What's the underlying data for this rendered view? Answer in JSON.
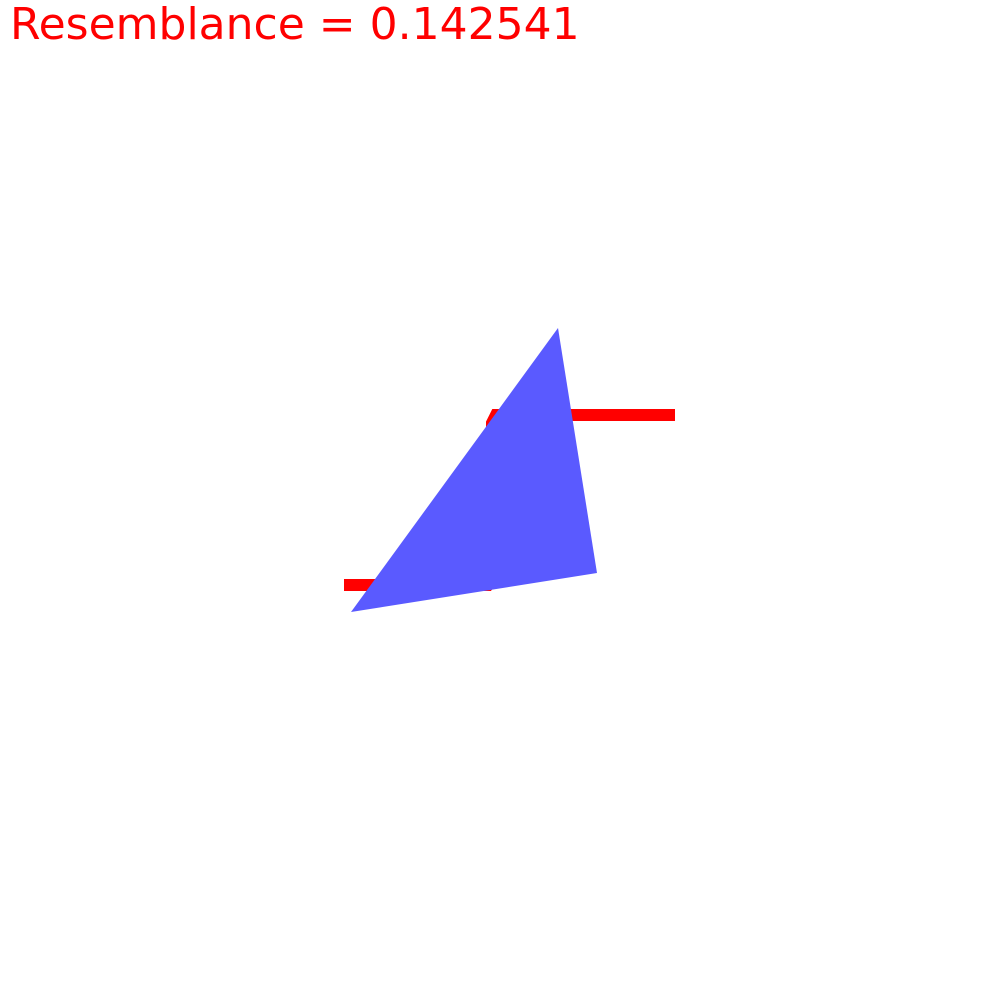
{
  "score": {
    "label": "Resemblance = 0.142541",
    "color": "#ff0000"
  },
  "shapes": {
    "triangle_color": "#5a5aff",
    "step_line_color": "#ff0000",
    "overlap_color": "#5a00c8"
  }
}
